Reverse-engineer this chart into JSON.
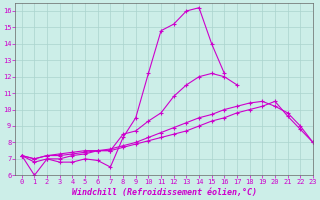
{
  "xlabel": "Windchill (Refroidissement éolien,°C)",
  "xlim": [
    -0.5,
    23
  ],
  "ylim": [
    6,
    16.5
  ],
  "xticks": [
    0,
    1,
    2,
    3,
    4,
    5,
    6,
    7,
    8,
    9,
    10,
    11,
    12,
    13,
    14,
    15,
    16,
    17,
    18,
    19,
    20,
    21,
    22,
    23
  ],
  "yticks": [
    6,
    7,
    8,
    9,
    10,
    11,
    12,
    13,
    14,
    15,
    16
  ],
  "bg_color": "#cceee8",
  "line_color": "#cc00cc",
  "grid_color": "#aad4ce",
  "curves": [
    {
      "x": [
        0,
        1,
        2,
        3,
        4,
        5,
        6,
        7,
        8,
        9,
        10,
        11,
        12,
        13,
        14,
        15,
        16,
        17,
        18,
        19,
        20,
        21,
        22
      ],
      "y": [
        7.2,
        6.0,
        7.0,
        6.8,
        6.8,
        7.0,
        6.9,
        6.5,
        8.3,
        9.5,
        12.2,
        14.8,
        15.2,
        16.0,
        16.2,
        14.0,
        12.2,
        null,
        null,
        null,
        null,
        null,
        null
      ]
    },
    {
      "x": [
        0,
        1,
        2,
        3,
        4,
        5,
        6,
        7,
        8,
        9,
        10,
        11,
        12,
        13,
        14,
        15,
        16,
        17,
        18,
        19,
        20,
        21,
        22,
        23
      ],
      "y": [
        7.2,
        6.8,
        7.0,
        7.0,
        7.2,
        7.3,
        7.5,
        7.5,
        8.5,
        8.7,
        9.3,
        9.8,
        10.8,
        11.5,
        12.0,
        12.2,
        12.0,
        11.5,
        null,
        null,
        null,
        null,
        null,
        null
      ]
    },
    {
      "x": [
        0,
        1,
        2,
        3,
        4,
        5,
        6,
        7,
        8,
        9,
        10,
        11,
        12,
        13,
        14,
        15,
        16,
        17,
        18,
        19,
        20,
        21,
        22,
        23
      ],
      "y": [
        7.2,
        7.0,
        7.2,
        7.2,
        7.3,
        7.4,
        7.5,
        7.6,
        7.8,
        8.0,
        8.3,
        8.6,
        8.9,
        9.2,
        9.5,
        9.7,
        10.0,
        10.2,
        10.4,
        10.5,
        10.2,
        9.8,
        9.0,
        8.0
      ]
    },
    {
      "x": [
        0,
        1,
        2,
        3,
        4,
        5,
        6,
        7,
        8,
        9,
        10,
        11,
        12,
        13,
        14,
        15,
        16,
        17,
        18,
        19,
        20,
        21,
        22,
        23
      ],
      "y": [
        7.2,
        7.0,
        7.2,
        7.3,
        7.4,
        7.5,
        7.5,
        7.5,
        7.7,
        7.9,
        8.1,
        8.3,
        8.5,
        8.7,
        9.0,
        9.3,
        9.5,
        9.8,
        10.0,
        10.2,
        10.5,
        9.6,
        8.8,
        8.0
      ]
    }
  ]
}
